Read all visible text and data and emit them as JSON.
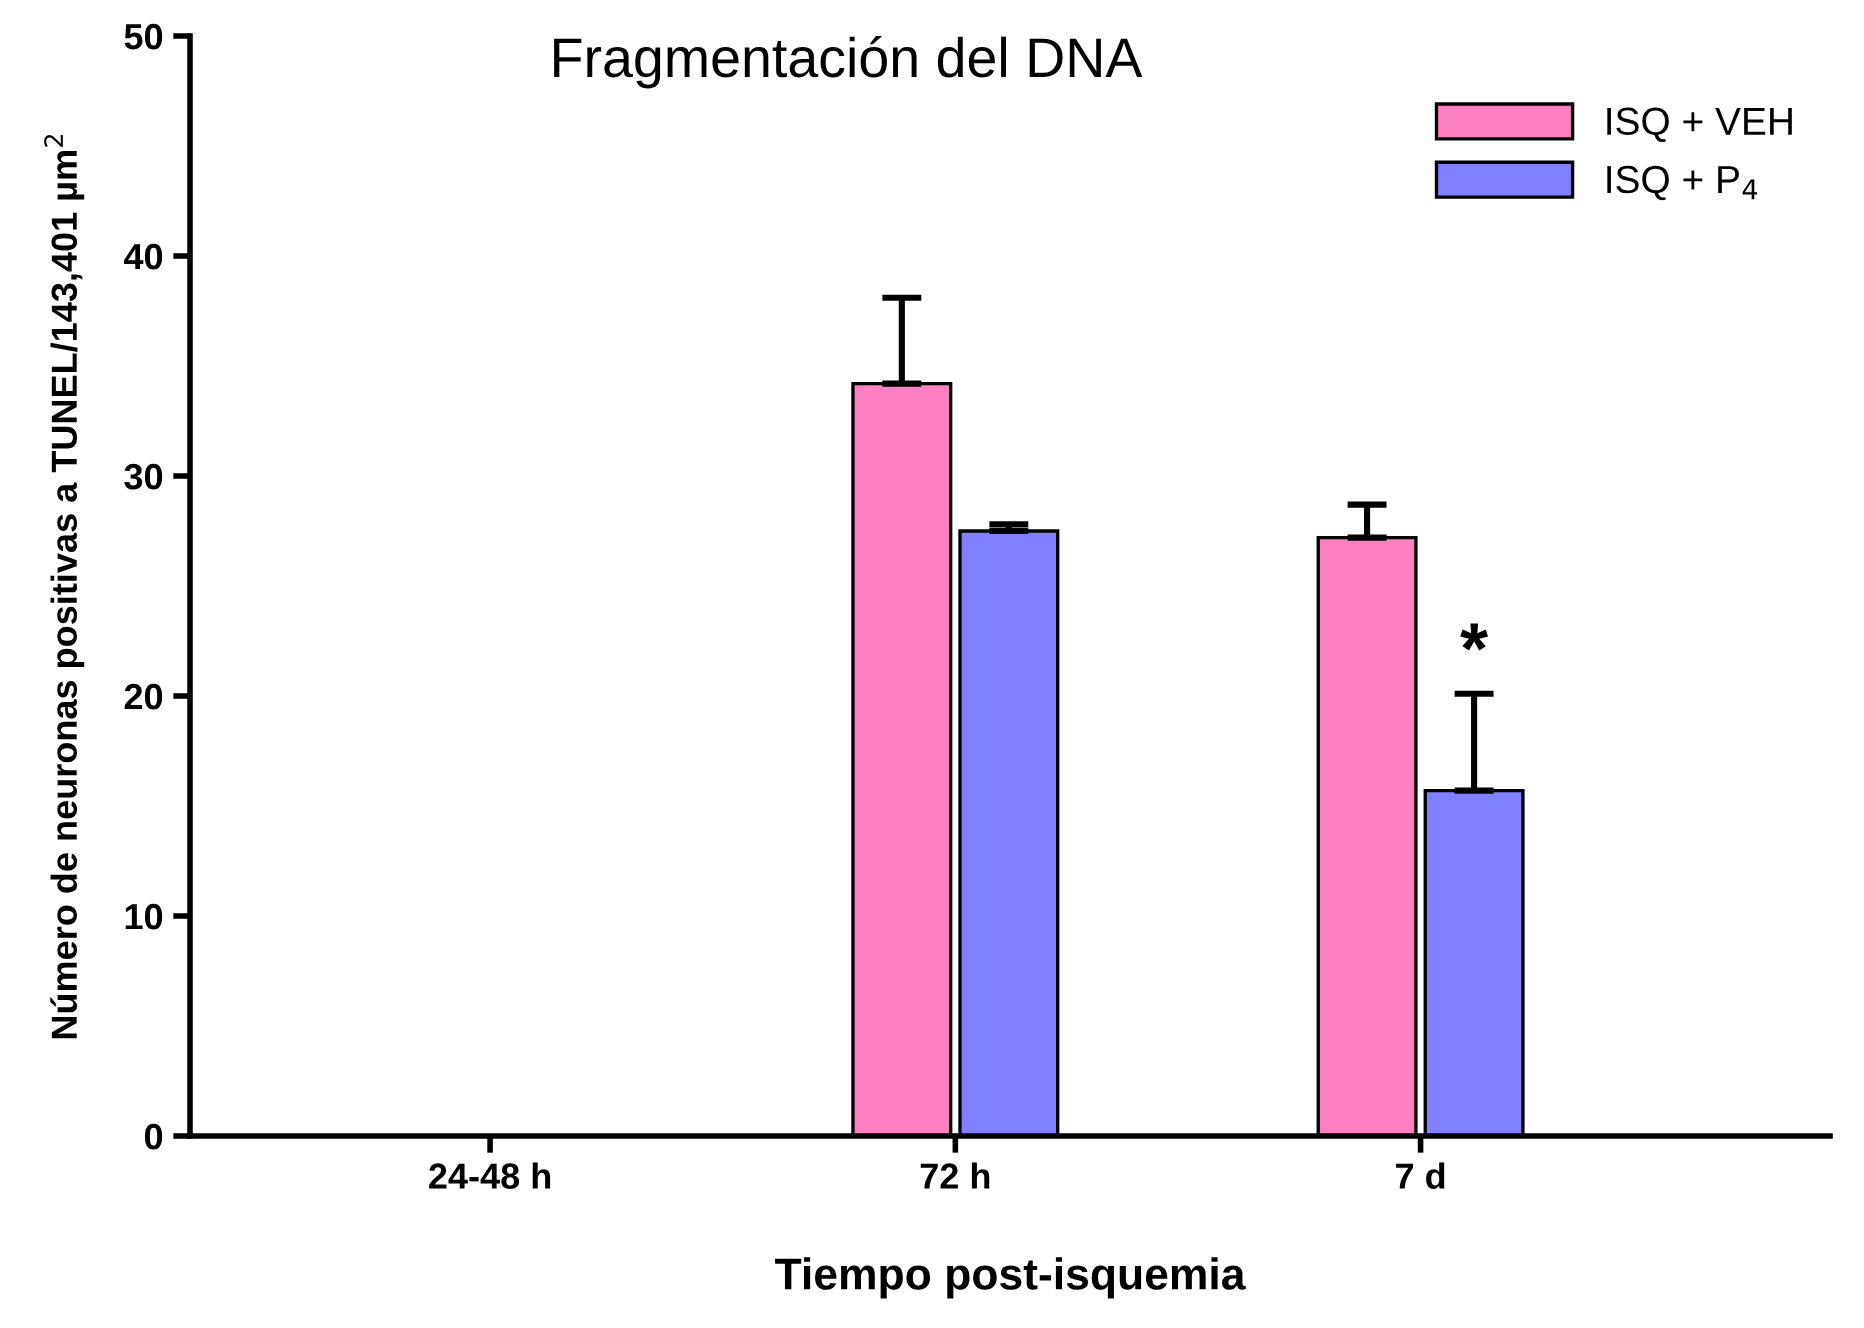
{
  "chart_data": {
    "type": "bar",
    "title": "Fragmentación del DNA",
    "xlabel": "Tiempo post-isquemia",
    "ylabel": "Número de neuronas positivas a TUNEL/143,401 µm$^{2}$",
    "categories": [
      "24-48 h",
      "72 h",
      "7 d"
    ],
    "series": [
      {
        "name": "ISQ + VEH",
        "color": "#ff80c0",
        "values": [
          null,
          34.2,
          27.2
        ],
        "errors": [
          null,
          [
            34.2,
            38.1
          ],
          [
            27.2,
            28.7
          ]
        ]
      },
      {
        "name": "ISQ + P$_{4}$",
        "color": "#8080ff",
        "values": [
          null,
          27.5,
          15.7
        ],
        "errors": [
          null,
          [
            27.5,
            27.8
          ],
          [
            15.7,
            20.1
          ]
        ]
      }
    ],
    "ylim": [
      0,
      50
    ],
    "yticks": [
      0,
      10,
      20,
      30,
      40,
      50
    ],
    "grid": false,
    "legend": "top right",
    "annotations": [
      {
        "text": "*",
        "x": "7 d",
        "y": 20.1
      }
    ]
  }
}
